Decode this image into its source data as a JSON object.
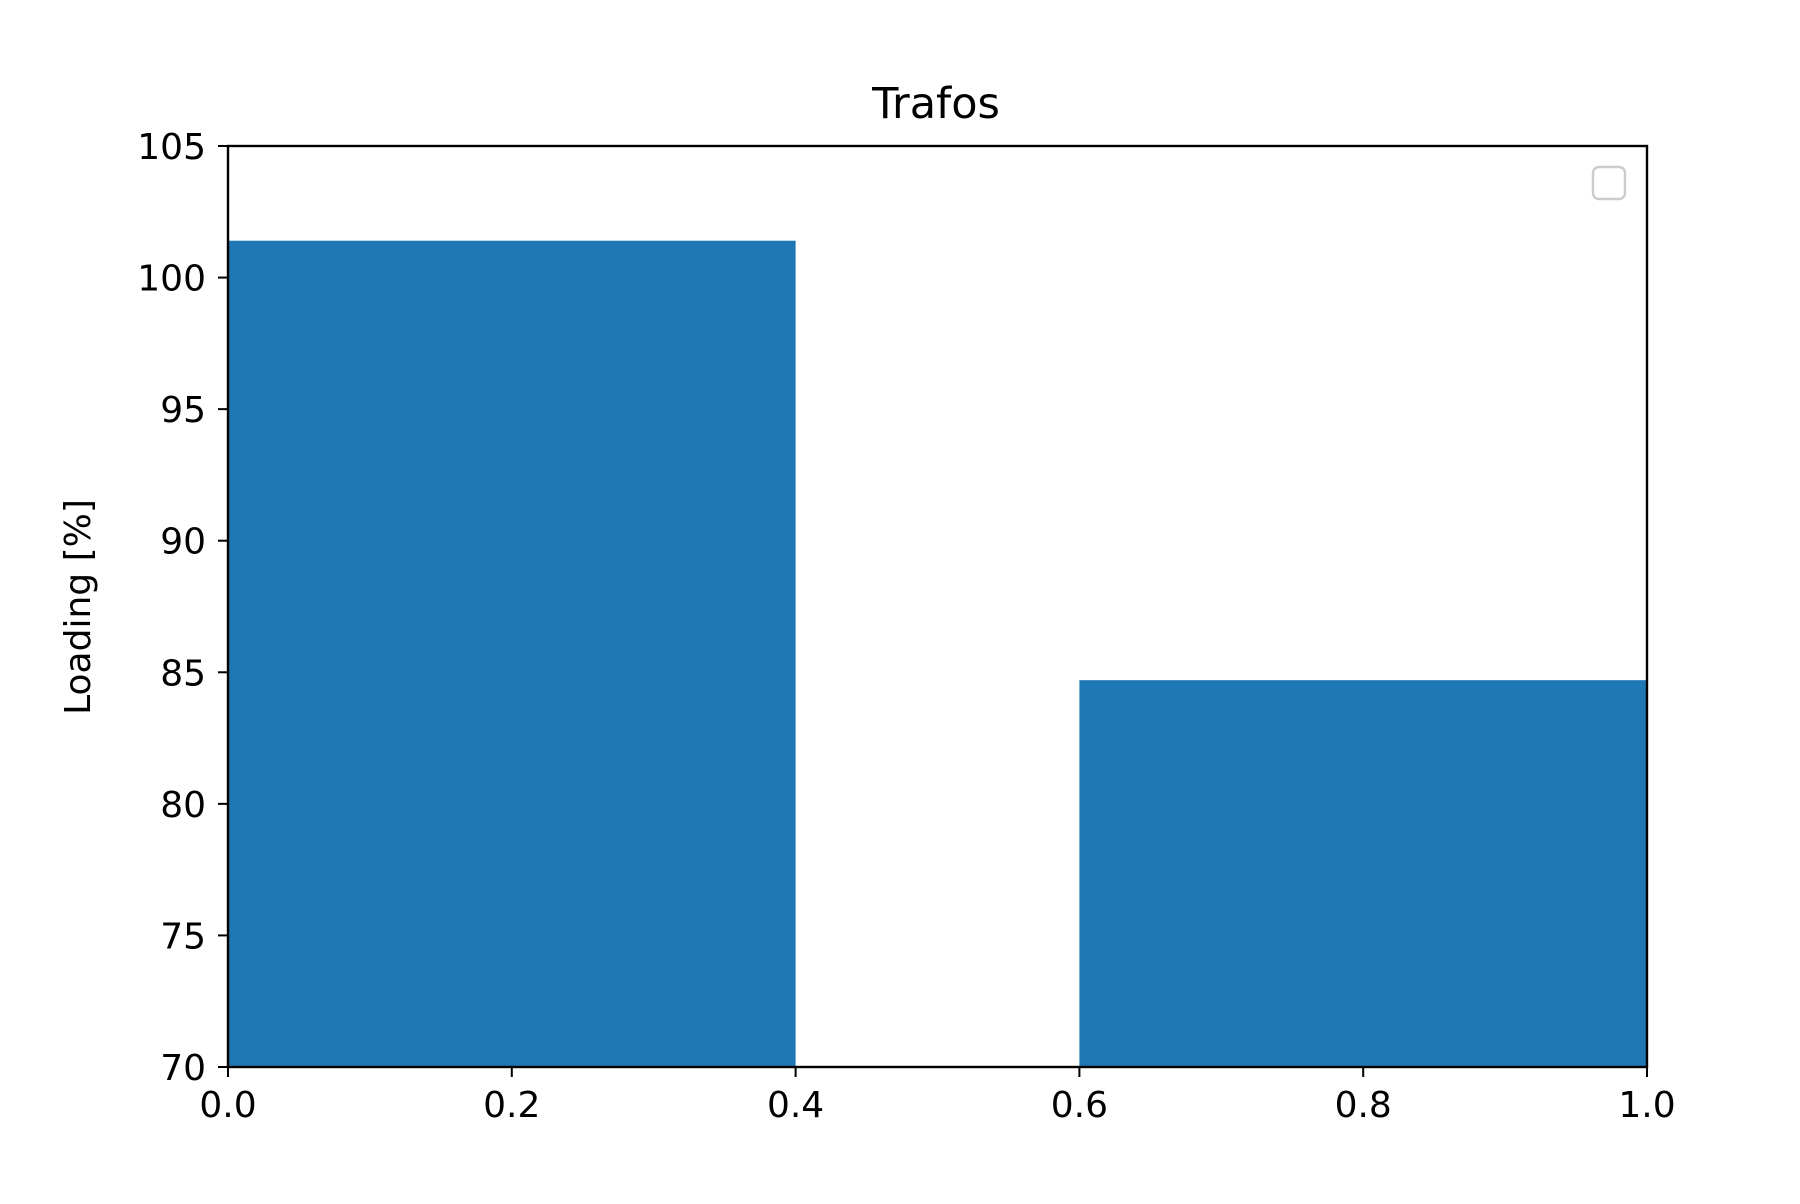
{
  "chart_data": {
    "type": "bar",
    "title": "Trafos",
    "xlabel": "",
    "ylabel": "Loading [%]",
    "xlim": [
      0.0,
      1.0
    ],
    "ylim": [
      70,
      105
    ],
    "x_ticks": [
      "0.0",
      "0.2",
      "0.4",
      "0.6",
      "0.8",
      "1.0"
    ],
    "y_ticks": [
      "70",
      "75",
      "80",
      "85",
      "90",
      "95",
      "100",
      "105"
    ],
    "bars": [
      {
        "x_start": 0.0,
        "x_end": 0.4,
        "value": 101.4
      },
      {
        "x_start": 0.6,
        "x_end": 1.0,
        "value": 84.7
      }
    ],
    "bar_color": "#1f77b4",
    "grid": false,
    "legend": {
      "placement": "top-right",
      "entries": []
    }
  }
}
